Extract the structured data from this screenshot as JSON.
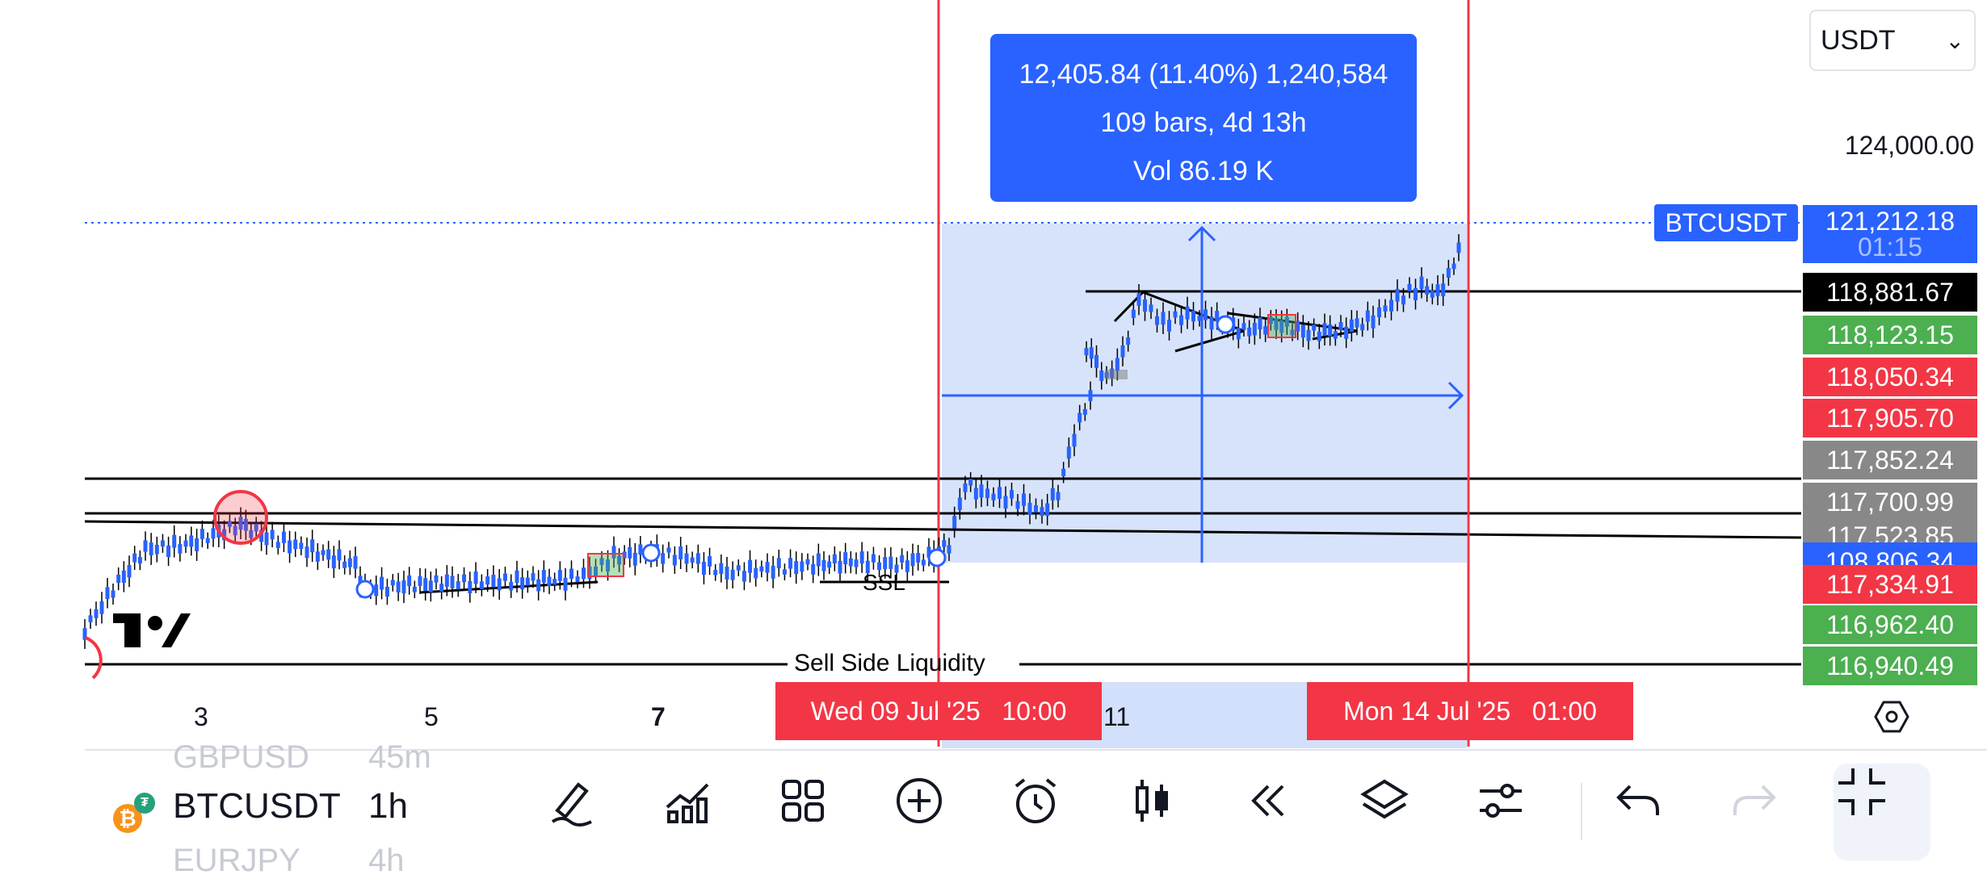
{
  "currency_select": {
    "value": "USDT",
    "chevron_icon": "chevron-down-icon"
  },
  "measure_box": {
    "line1": "12,405.84 (11.40%) 1,240,584",
    "line2": "109 bars, 4d 13h",
    "line3": "Vol 86.19 K"
  },
  "symbol_tag": "BTCUSDT",
  "price_axis": {
    "top_label": "124,000.00",
    "tags": [
      {
        "label": "121,212.18",
        "sub": "01:15",
        "color": "#2962ff"
      },
      {
        "label": "118,881.67",
        "color": "#000000"
      },
      {
        "label": "118,123.15",
        "color": "#4caf50"
      },
      {
        "label": "118,050.34",
        "color": "#f23645"
      },
      {
        "label": "117,905.70",
        "color": "#f23645"
      },
      {
        "label": "117,852.24",
        "color": "#888888"
      },
      {
        "label": "117,700.99",
        "color": "#888888"
      },
      {
        "label": "117,523.85",
        "color": "#888888"
      },
      {
        "label": "108,806.34",
        "color": "#2962ff"
      },
      {
        "label": "117,334.91",
        "color": "#f23645"
      },
      {
        "label": "116,962.40",
        "color": "#4caf50"
      },
      {
        "label": "116,940.49",
        "color": "#4caf50"
      }
    ]
  },
  "annotations": {
    "ssl": "SSL",
    "sell_side": "Sell Side Liquidity"
  },
  "time_axis": {
    "ticks": [
      "3",
      "5",
      "7",
      "11"
    ],
    "start_label": "Wed 09 Jul '25   10:00",
    "end_label": "Mon 14 Jul '25   01:00",
    "settings_icon": "hexagon-settings-icon"
  },
  "watchlist": {
    "prev": {
      "symbol": "GBPUSD",
      "tf": "45m"
    },
    "current": {
      "symbol": "BTCUSDT",
      "tf": "1h"
    },
    "next": {
      "symbol": "EURJPY",
      "tf": "4h"
    }
  },
  "toolbar": {
    "icons": [
      "pencil-icon",
      "indicators-icon",
      "grid-layout-icon",
      "plus-circle-icon",
      "alarm-icon",
      "candles-icon",
      "rewind-icon",
      "layers-icon",
      "settings-sliders-icon",
      "undo-icon",
      "redo-icon",
      "collapse-icon"
    ]
  },
  "colors": {
    "accent": "#2962ff",
    "red": "#f23645",
    "green": "#4caf50",
    "candle": "#2962ff",
    "selection": "#d3e0fb"
  }
}
